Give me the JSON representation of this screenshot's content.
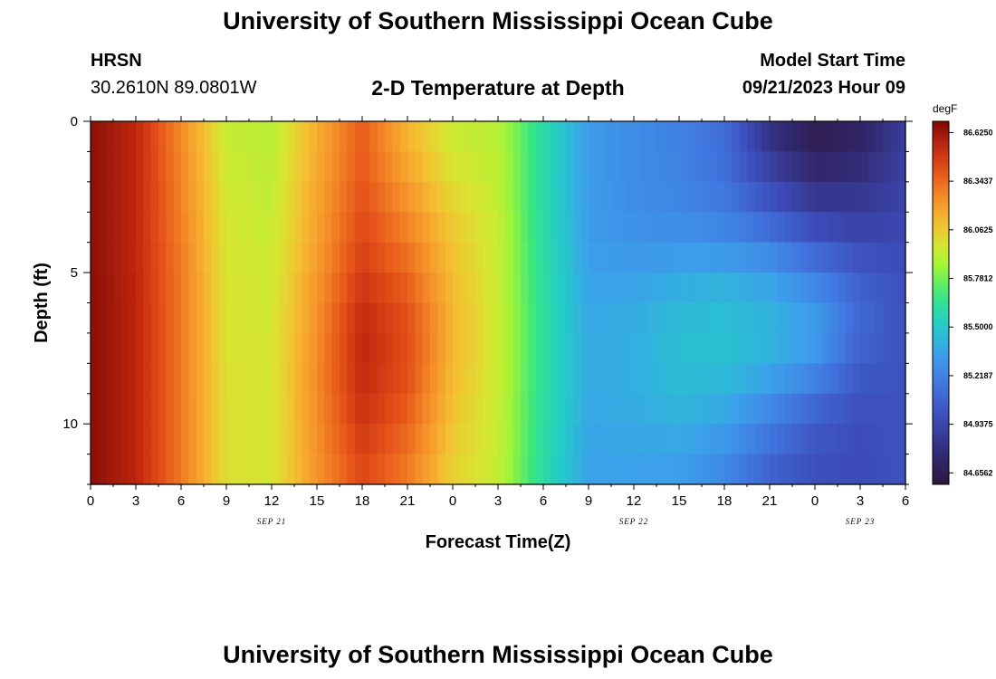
{
  "header": {
    "title": "University of Southern Mississippi Ocean Cube",
    "station": "HRSN",
    "coords": "30.2610N  89.0801W",
    "subtitle": "2-D Temperature at Depth",
    "start_label": "Model Start Time",
    "start_time": "09/21/2023 Hour 09"
  },
  "footer": {
    "title": "University of Southern Mississippi Ocean Cube"
  },
  "chart_data": {
    "type": "heatmap",
    "title": "2-D Temperature at Depth",
    "xlabel": "Forecast Time(Z)",
    "ylabel": "Depth (ft)",
    "xlim": [
      0,
      54
    ],
    "ylim": [
      0,
      12
    ],
    "x_ticks": [
      "0",
      "3",
      "6",
      "9",
      "12",
      "15",
      "18",
      "21",
      "0",
      "3",
      "6",
      "9",
      "12",
      "15",
      "18",
      "21",
      "0",
      "3",
      "6"
    ],
    "y_ticks": [
      "0",
      "5",
      "10"
    ],
    "date_labels": [
      "SEP 21",
      "SEP 22",
      "SEP 23"
    ],
    "colorbar": {
      "unit": "degF",
      "ticks": [
        "86.6250",
        "86.3437",
        "86.0625",
        "85.7812",
        "85.5000",
        "85.2187",
        "84.9375",
        "84.6562"
      ],
      "min": 84.59,
      "max": 86.69
    },
    "depths_ft": [
      0,
      1,
      2,
      3,
      4,
      5,
      6,
      7,
      8,
      9,
      10,
      11,
      12
    ],
    "hours": [
      0,
      3,
      6,
      9,
      12,
      15,
      18,
      21,
      24,
      27,
      30,
      33,
      36,
      39,
      42,
      45,
      48,
      51,
      54
    ],
    "values_degF": [
      [
        86.66,
        86.55,
        86.25,
        85.93,
        85.9,
        86.15,
        86.38,
        86.12,
        85.93,
        85.9,
        85.6,
        85.33,
        85.26,
        85.22,
        85.13,
        84.8,
        84.64,
        84.7,
        84.88
      ],
      [
        86.66,
        86.55,
        86.26,
        85.95,
        85.91,
        86.15,
        86.38,
        86.15,
        85.97,
        85.91,
        85.6,
        85.33,
        85.26,
        85.22,
        85.13,
        84.85,
        84.7,
        84.75,
        84.9
      ],
      [
        86.66,
        86.55,
        86.27,
        85.96,
        85.92,
        86.17,
        86.4,
        86.2,
        86.0,
        85.92,
        85.6,
        85.33,
        85.26,
        85.23,
        85.15,
        84.95,
        84.8,
        84.82,
        84.92
      ],
      [
        86.66,
        86.55,
        86.28,
        85.97,
        85.93,
        86.18,
        86.42,
        86.25,
        86.05,
        85.93,
        85.6,
        85.33,
        85.27,
        85.25,
        85.2,
        85.05,
        84.9,
        84.88,
        84.94
      ],
      [
        86.66,
        86.55,
        86.29,
        85.98,
        85.94,
        86.19,
        86.45,
        86.3,
        86.08,
        85.94,
        85.61,
        85.34,
        85.3,
        85.3,
        85.28,
        85.2,
        85.05,
        84.95,
        84.96
      ],
      [
        86.66,
        86.55,
        86.3,
        85.98,
        85.95,
        86.21,
        86.48,
        86.35,
        86.1,
        85.94,
        85.61,
        85.35,
        85.34,
        85.37,
        85.38,
        85.33,
        85.2,
        85.05,
        84.98
      ],
      [
        86.66,
        86.56,
        86.3,
        85.99,
        85.96,
        86.23,
        86.52,
        86.4,
        86.12,
        85.95,
        85.62,
        85.37,
        85.38,
        85.43,
        85.45,
        85.4,
        85.3,
        85.1,
        84.99
      ],
      [
        86.66,
        86.56,
        86.3,
        85.99,
        85.96,
        86.24,
        86.55,
        86.42,
        86.13,
        85.95,
        85.62,
        85.38,
        85.4,
        85.46,
        85.47,
        85.43,
        85.35,
        85.1,
        85.0
      ],
      [
        86.66,
        86.56,
        86.3,
        85.99,
        85.97,
        86.25,
        86.55,
        86.42,
        86.12,
        85.95,
        85.62,
        85.38,
        85.4,
        85.46,
        85.46,
        85.4,
        85.3,
        85.05,
        85.0
      ],
      [
        86.66,
        86.56,
        86.3,
        86.0,
        85.97,
        86.25,
        86.53,
        86.4,
        86.1,
        85.94,
        85.62,
        85.38,
        85.4,
        85.44,
        85.42,
        85.3,
        85.15,
        85.0,
        85.0
      ],
      [
        86.66,
        86.56,
        86.3,
        86.0,
        85.97,
        86.24,
        86.5,
        86.36,
        86.08,
        85.94,
        85.61,
        85.37,
        85.38,
        85.4,
        85.35,
        85.2,
        85.05,
        84.98,
        85.0
      ],
      [
        86.66,
        86.56,
        86.3,
        86.0,
        85.97,
        86.23,
        86.46,
        86.32,
        86.06,
        85.93,
        85.61,
        85.36,
        85.36,
        85.36,
        85.28,
        85.12,
        85.0,
        84.97,
        85.0
      ],
      [
        86.66,
        86.56,
        86.3,
        86.0,
        85.97,
        86.22,
        86.43,
        86.28,
        86.04,
        85.93,
        85.6,
        85.35,
        85.34,
        85.33,
        85.22,
        85.05,
        84.98,
        84.97,
        85.0
      ]
    ]
  }
}
